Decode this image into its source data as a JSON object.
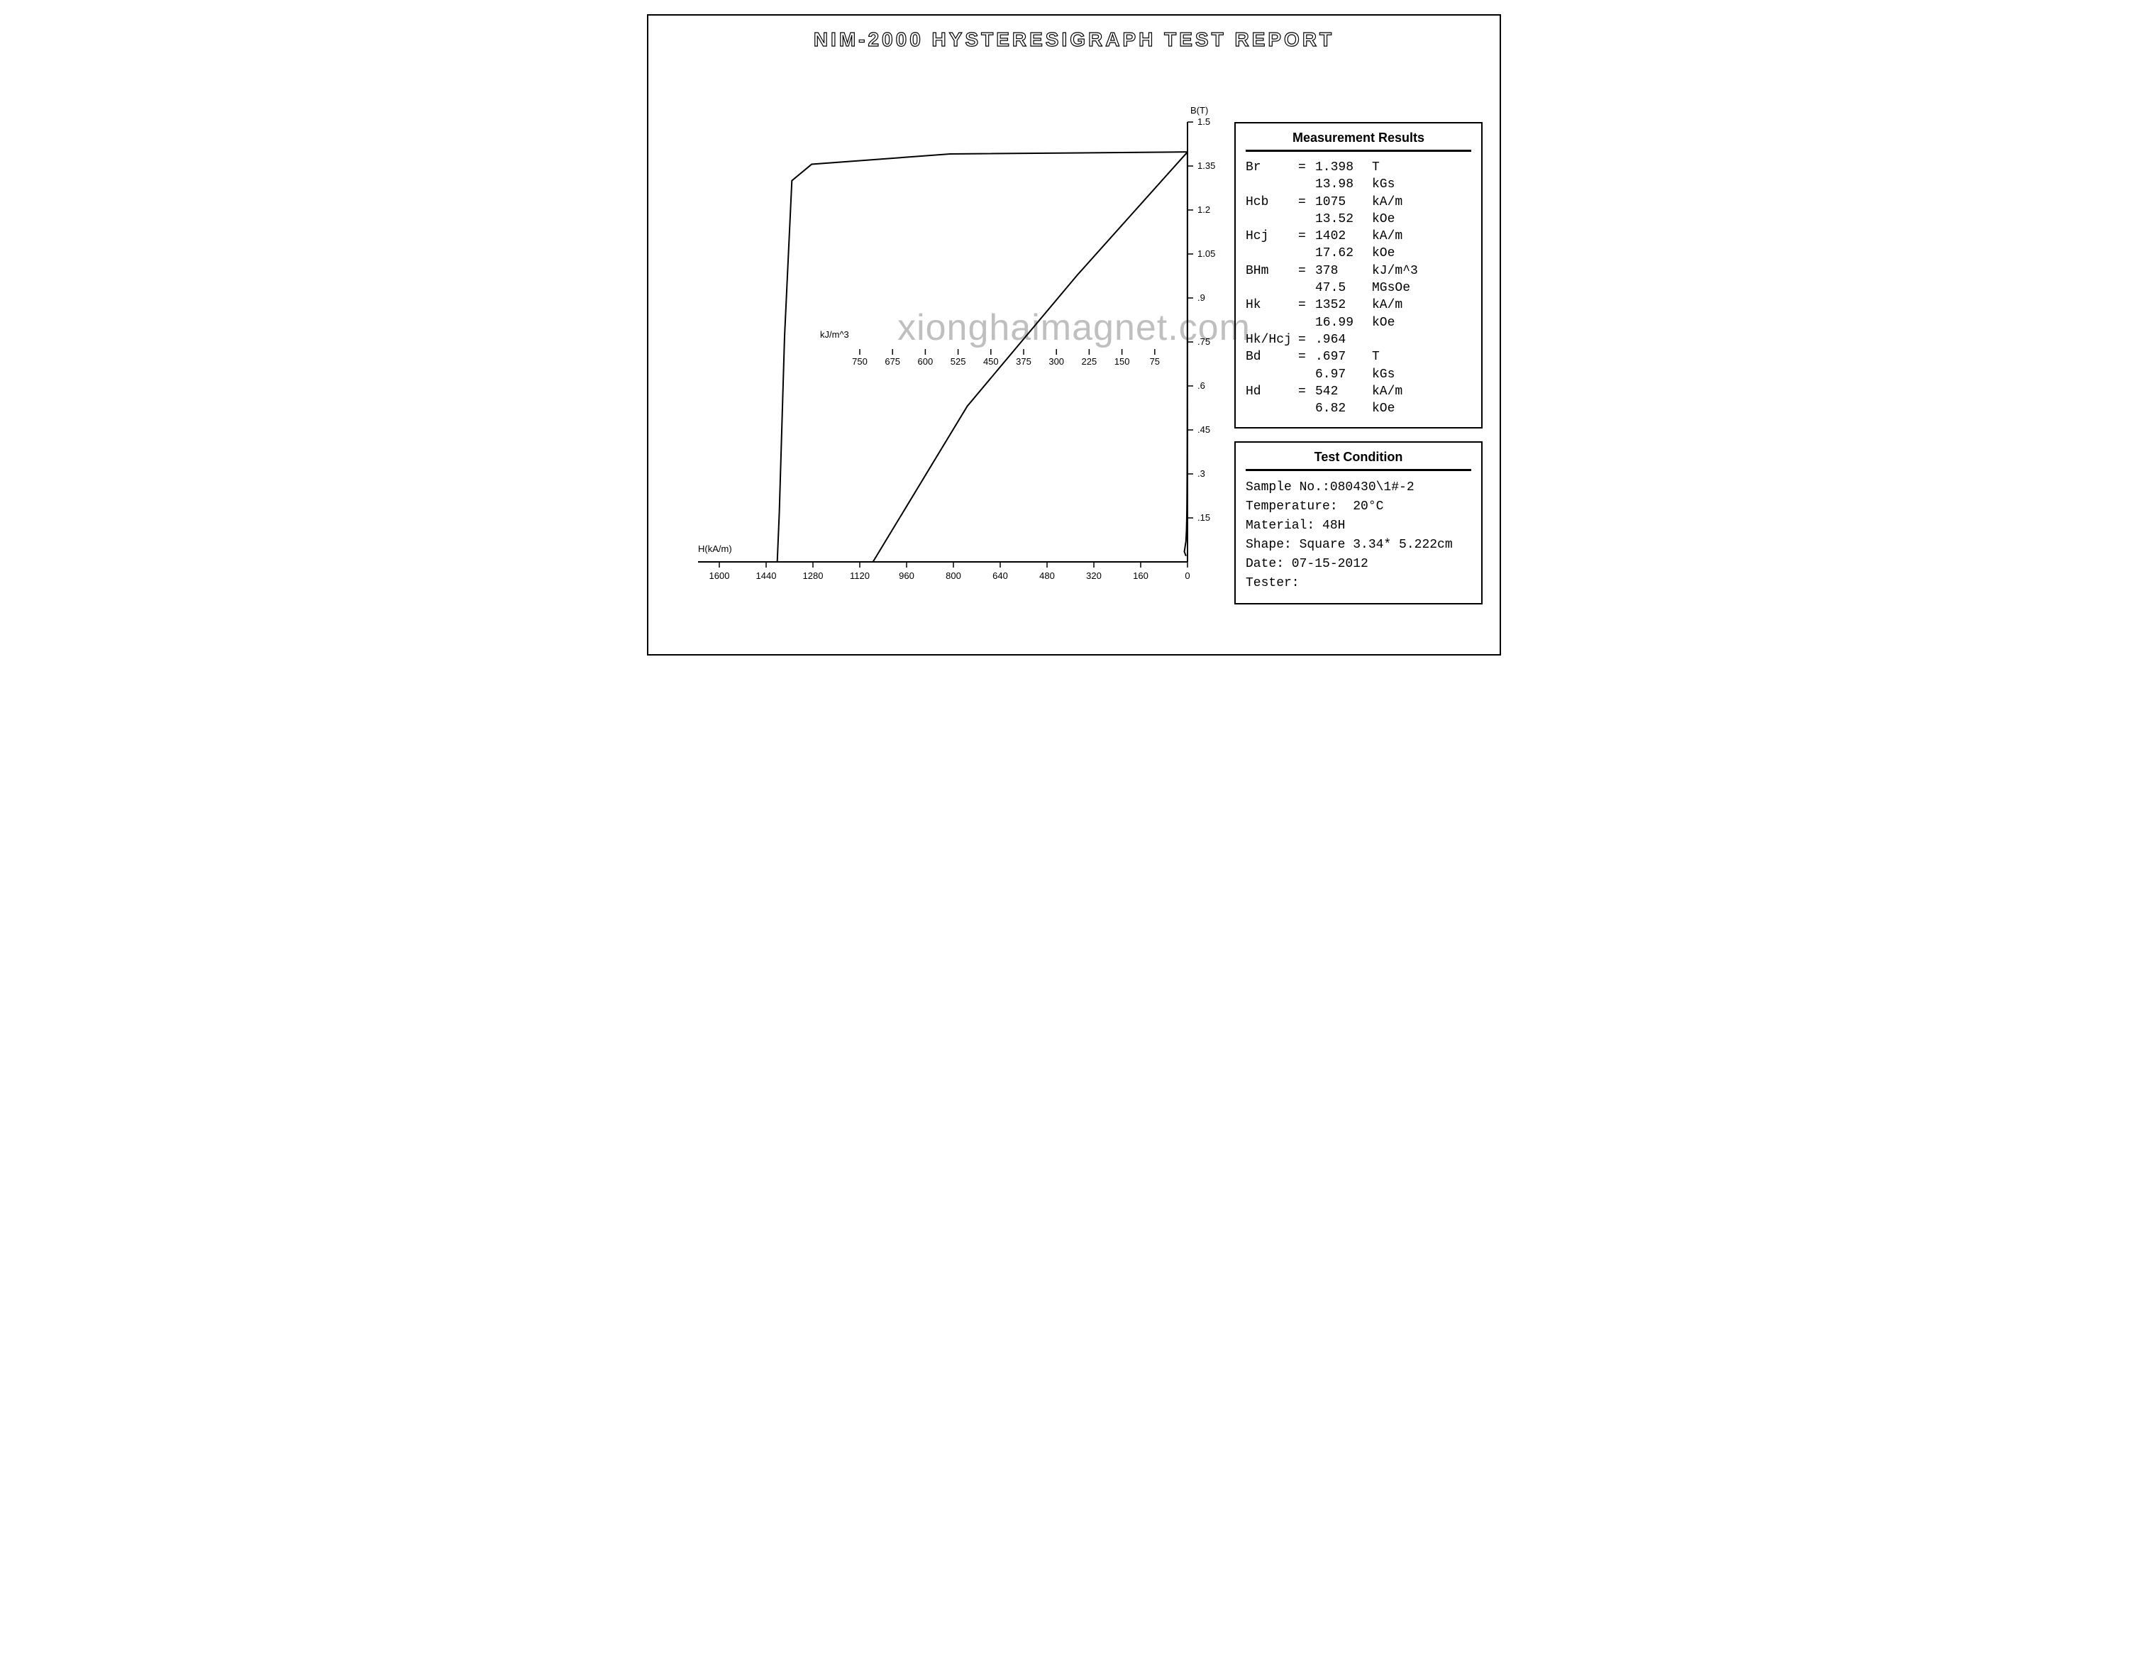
{
  "title": "NIM-2000 HYSTERESIGRAPH TEST REPORT",
  "watermark": "xionghaimagnet.com",
  "chart": {
    "type": "demagnetization-curves",
    "background_color": "#ffffff",
    "stroke_color": "#000000",
    "line_width": 2,
    "x_axis": {
      "label": "H(kA/m)",
      "min": 0,
      "max": 1600,
      "ticks": [
        1600,
        1440,
        1280,
        1120,
        960,
        800,
        640,
        480,
        320,
        160,
        0
      ],
      "label_fontsize": 13
    },
    "y_axis": {
      "label": "B(T)",
      "min": 0,
      "max": 1.5,
      "ticks": [
        1.5,
        1.35,
        1.2,
        1.05,
        0.9,
        0.75,
        0.6,
        0.45,
        0.3,
        0.15
      ],
      "tick_labels": [
        "1.5",
        "1.35",
        "1.2",
        "1.05",
        ".9",
        ".75",
        ".6",
        ".45",
        ".3",
        ".15"
      ],
      "label_fontsize": 13
    },
    "inner_axis": {
      "label": "kJ/m^3",
      "ticks": [
        750,
        675,
        600,
        525,
        450,
        375,
        300,
        225,
        150,
        75
      ]
    },
    "key_points": {
      "Br_T": 1.398,
      "Hcb_kAm": 1075,
      "Hcj_kAm": 1402,
      "Hk_kAm": 1352,
      "Bd_T": 0.697,
      "Hd_kAm": 542,
      "BHm_kJm3": 378
    }
  },
  "results": {
    "title": "Measurement Results",
    "rows": [
      {
        "label": "Br",
        "eq": "=",
        "val": "1.398",
        "unit": "T"
      },
      {
        "label": "",
        "eq": "",
        "val": "13.98",
        "unit": "kGs"
      },
      {
        "label": "Hcb",
        "eq": "=",
        "val": "1075",
        "unit": "kA/m"
      },
      {
        "label": "",
        "eq": "",
        "val": "13.52",
        "unit": "kOe"
      },
      {
        "label": "Hcj",
        "eq": "=",
        "val": "1402",
        "unit": "kA/m"
      },
      {
        "label": "",
        "eq": "",
        "val": "17.62",
        "unit": "kOe"
      },
      {
        "label": "BHm",
        "eq": "=",
        "val": "378",
        "unit": "kJ/m^3"
      },
      {
        "label": "",
        "eq": "",
        "val": "47.5",
        "unit": "MGsOe"
      },
      {
        "label": "Hk",
        "eq": "=",
        "val": "1352",
        "unit": "kA/m"
      },
      {
        "label": "",
        "eq": "",
        "val": "16.99",
        "unit": "kOe"
      },
      {
        "label": "Hk/Hcj",
        "eq": "=",
        "val": ".964",
        "unit": ""
      },
      {
        "label": "Bd",
        "eq": "=",
        "val": ".697",
        "unit": "T"
      },
      {
        "label": "",
        "eq": "",
        "val": "6.97",
        "unit": "kGs"
      },
      {
        "label": "Hd",
        "eq": "=",
        "val": "542",
        "unit": "kA/m"
      },
      {
        "label": "",
        "eq": "",
        "val": "6.82",
        "unit": "kOe"
      }
    ]
  },
  "condition": {
    "title": "Test Condition",
    "lines": [
      "Sample No.:080430\\1#-2",
      "Temperature:  20°C",
      "Material: 48H",
      "Shape: Square 3.34* 5.222cm",
      "Date: 07-15-2012",
      "Tester:"
    ]
  }
}
